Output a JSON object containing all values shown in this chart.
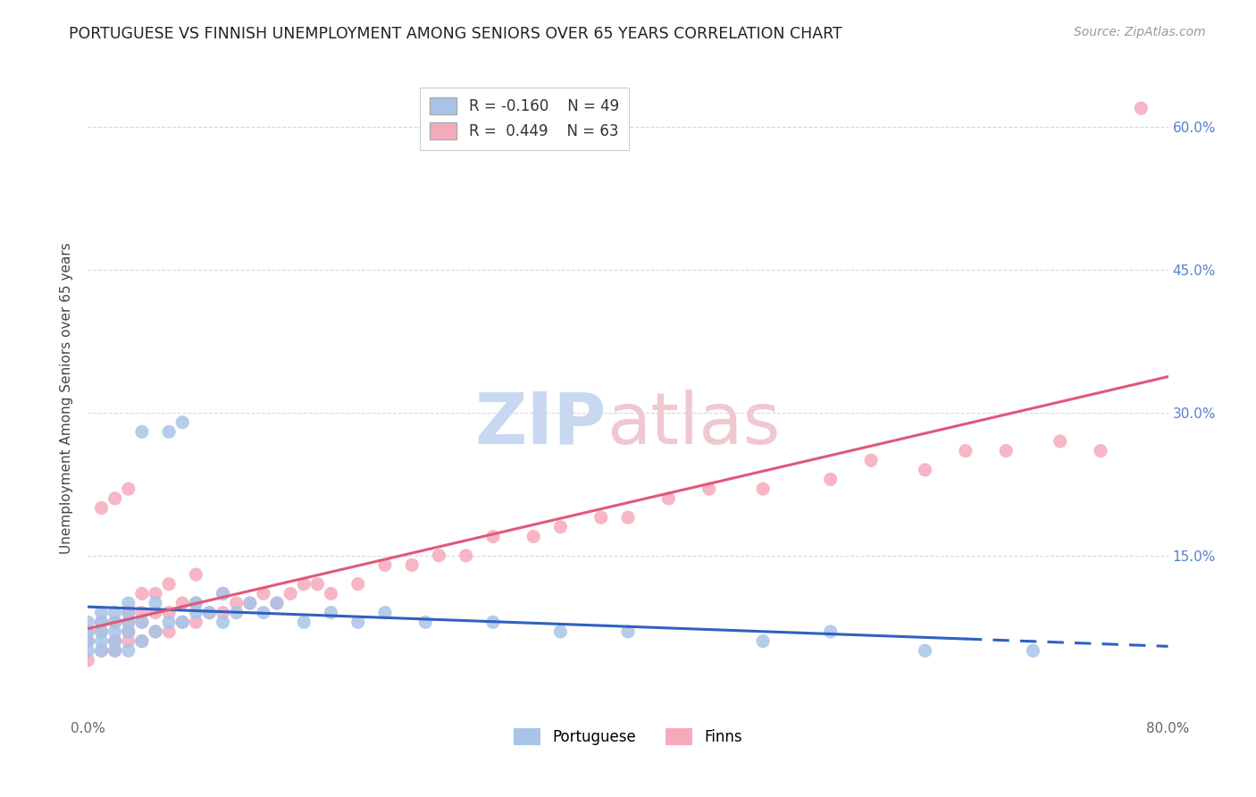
{
  "title": "PORTUGUESE VS FINNISH UNEMPLOYMENT AMONG SENIORS OVER 65 YEARS CORRELATION CHART",
  "source": "Source: ZipAtlas.com",
  "ylabel": "Unemployment Among Seniors over 65 years",
  "xlim": [
    0.0,
    0.8
  ],
  "ylim": [
    -0.02,
    0.65
  ],
  "portuguese_R": "-0.160",
  "portuguese_N": "49",
  "finns_R": "0.449",
  "finns_N": "63",
  "portuguese_color": "#a8c4e8",
  "finns_color": "#f5aabc",
  "portuguese_line_color": "#3060c0",
  "finns_line_color": "#e05878",
  "background_color": "#ffffff",
  "grid_color": "#d8d8d8",
  "portuguese_scatter_x": [
    0.0,
    0.0,
    0.0,
    0.0,
    0.01,
    0.01,
    0.01,
    0.01,
    0.01,
    0.02,
    0.02,
    0.02,
    0.02,
    0.02,
    0.03,
    0.03,
    0.03,
    0.03,
    0.03,
    0.04,
    0.04,
    0.04,
    0.05,
    0.05,
    0.06,
    0.06,
    0.07,
    0.07,
    0.08,
    0.08,
    0.09,
    0.1,
    0.1,
    0.11,
    0.12,
    0.13,
    0.14,
    0.16,
    0.18,
    0.2,
    0.22,
    0.25,
    0.3,
    0.35,
    0.4,
    0.5,
    0.55,
    0.62,
    0.7
  ],
  "portuguese_scatter_y": [
    0.05,
    0.06,
    0.07,
    0.08,
    0.05,
    0.06,
    0.07,
    0.08,
    0.09,
    0.05,
    0.06,
    0.07,
    0.08,
    0.09,
    0.05,
    0.07,
    0.08,
    0.09,
    0.1,
    0.06,
    0.08,
    0.28,
    0.07,
    0.1,
    0.08,
    0.28,
    0.08,
    0.29,
    0.09,
    0.1,
    0.09,
    0.08,
    0.11,
    0.09,
    0.1,
    0.09,
    0.1,
    0.08,
    0.09,
    0.08,
    0.09,
    0.08,
    0.08,
    0.07,
    0.07,
    0.06,
    0.07,
    0.05,
    0.05
  ],
  "finns_scatter_x": [
    0.0,
    0.0,
    0.0,
    0.01,
    0.01,
    0.01,
    0.01,
    0.02,
    0.02,
    0.02,
    0.02,
    0.03,
    0.03,
    0.03,
    0.03,
    0.03,
    0.04,
    0.04,
    0.04,
    0.04,
    0.05,
    0.05,
    0.05,
    0.06,
    0.06,
    0.06,
    0.07,
    0.07,
    0.08,
    0.08,
    0.08,
    0.09,
    0.1,
    0.1,
    0.11,
    0.12,
    0.13,
    0.14,
    0.15,
    0.16,
    0.17,
    0.18,
    0.2,
    0.22,
    0.24,
    0.26,
    0.28,
    0.3,
    0.33,
    0.35,
    0.38,
    0.4,
    0.43,
    0.46,
    0.5,
    0.55,
    0.58,
    0.62,
    0.65,
    0.68,
    0.72,
    0.75,
    0.78
  ],
  "finns_scatter_y": [
    0.04,
    0.06,
    0.07,
    0.05,
    0.07,
    0.08,
    0.2,
    0.05,
    0.06,
    0.08,
    0.21,
    0.06,
    0.07,
    0.08,
    0.09,
    0.22,
    0.06,
    0.08,
    0.09,
    0.11,
    0.07,
    0.09,
    0.11,
    0.07,
    0.09,
    0.12,
    0.08,
    0.1,
    0.08,
    0.1,
    0.13,
    0.09,
    0.09,
    0.11,
    0.1,
    0.1,
    0.11,
    0.1,
    0.11,
    0.12,
    0.12,
    0.11,
    0.12,
    0.14,
    0.14,
    0.15,
    0.15,
    0.17,
    0.17,
    0.18,
    0.19,
    0.19,
    0.21,
    0.22,
    0.22,
    0.23,
    0.25,
    0.24,
    0.26,
    0.26,
    0.27,
    0.26,
    0.62
  ]
}
